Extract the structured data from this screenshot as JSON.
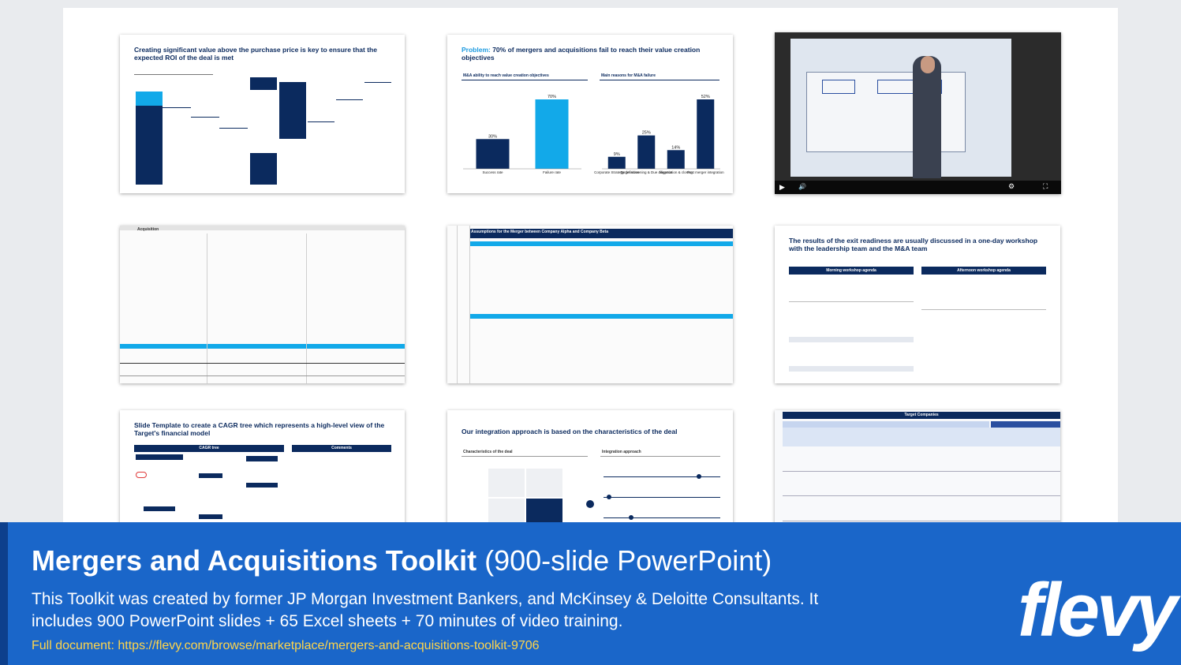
{
  "slides": {
    "s1": {
      "title": "Creating significant value above the purchase price is key to ensure that the expected ROI of the deal is met"
    },
    "s2": {
      "title_prefix": "Problem:",
      "title_rest": " 70% of mergers and acquisitions fail to reach their value creation objectives",
      "left_header": "M&A ability to reach value creation objectives",
      "right_header": "Main reasons for M&A failure",
      "chart_left": {
        "type": "bar",
        "categories": [
          "Success rate",
          "Failure rate"
        ],
        "values": [
          30,
          70
        ],
        "labels": [
          "30%",
          "70%"
        ]
      },
      "chart_right": {
        "type": "bar",
        "categories": [
          "Corporate Strategy definition",
          "Target screening & Due diligence",
          "Negotiation & closing",
          "Post merger integration"
        ],
        "values": [
          9,
          25,
          14,
          52
        ],
        "labels": [
          "9%",
          "25%",
          "14%",
          "52%"
        ]
      }
    },
    "s4": {
      "title": "Acquisition"
    },
    "s5": {
      "title": "Assumptions for the Merger between Company Alpha and Company Beta"
    },
    "s6": {
      "title": "The results of the exit readiness are usually discussed in a one-day workshop with the leadership team and the M&A team",
      "left_header": "Morning workshop agenda",
      "right_header": "Afternoon workshop agenda"
    },
    "s7": {
      "title": "Slide Template to create a CAGR tree which represents a high-level view of the Target's financial model",
      "left_header": "CAGR tree",
      "right_header": "Comments"
    },
    "s8": {
      "title": "Our integration approach is based on the characteristics of the deal",
      "left_header": "Characteristics of the deal",
      "right_header": "Integration approach"
    },
    "s9": {
      "title": "Target Companies"
    }
  },
  "banner": {
    "title_bold": "Mergers and Acquisitions Toolkit",
    "title_light": " (900-slide PowerPoint)",
    "description": "This Toolkit was created by former JP Morgan Investment Bankers, and McKinsey & Deloitte Consultants. It includes 900 PowerPoint slides + 65 Excel sheets + 70 minutes of video training.",
    "link": "Full document: https://flevy.com/browse/marketplace/mergers-and-acquisitions-toolkit-9706",
    "logo": "flevy"
  },
  "colors": {
    "navy": "#0b2a5e",
    "cyan": "#12a9e9",
    "banner": "#1a66c9",
    "link": "#ffd54a"
  }
}
